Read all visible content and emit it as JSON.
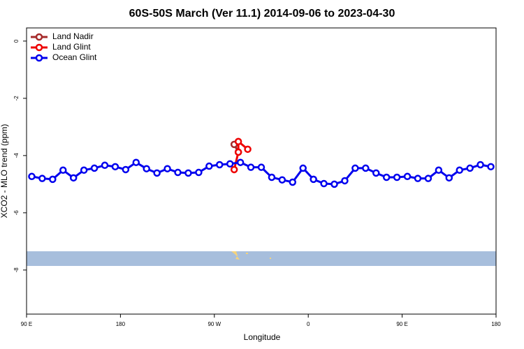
{
  "chart_data": {
    "type": "line",
    "title": "60S-50S March (Ver 11.1)   2014-09-06 to 2023-04-30",
    "x_label": "Longitude",
    "y_label": "XCO2 - MLO trend (ppm)",
    "xlim": [
      90,
      540
    ],
    "xticks": [
      {
        "value": 90,
        "label": "90 E"
      },
      180,
      {
        "value": 270,
        "label": "90 W"
      },
      {
        "value": 360,
        "label": "0"
      },
      {
        "value": 450,
        "label": "90 E"
      },
      {
        "value": 540,
        "label": "180"
      }
    ],
    "ylim": [
      -9.54,
      0.46
    ],
    "yticks": [
      0,
      -2,
      -4,
      -6,
      -8
    ],
    "legend": "top-left",
    "series": [
      {
        "name": "Land Nadir",
        "color": "#a52a2a",
        "x": [
          289,
          293
        ],
        "values": [
          -3.61,
          -3.88
        ]
      },
      {
        "name": "Land Glint",
        "color": "#ee0000",
        "x": [
          289,
          293,
          293,
          302
        ],
        "values": [
          -4.49,
          -3.88,
          -3.51,
          -3.78
        ]
      },
      {
        "name": "Ocean Glint",
        "color": "#0000ee",
        "x": [
          95,
          105,
          115,
          125,
          135,
          145,
          155,
          165,
          175,
          185,
          195,
          205,
          215,
          225,
          235,
          245,
          255,
          265,
          275,
          285,
          295,
          305,
          315,
          325,
          335,
          345,
          355,
          365,
          375,
          385,
          395,
          405,
          415,
          425,
          435,
          445,
          455,
          465,
          475,
          485,
          495,
          505,
          515,
          525,
          535
        ],
        "values": [
          -4.73,
          -4.8,
          -4.83,
          -4.51,
          -4.78,
          -4.51,
          -4.44,
          -4.34,
          -4.39,
          -4.49,
          -4.24,
          -4.46,
          -4.61,
          -4.46,
          -4.59,
          -4.61,
          -4.59,
          -4.37,
          -4.32,
          -4.29,
          -4.24,
          -4.41,
          -4.41,
          -4.76,
          -4.85,
          -4.93,
          -4.44,
          -4.83,
          -4.98,
          -5.0,
          -4.88,
          -4.44,
          -4.44,
          -4.61,
          -4.76,
          -4.76,
          -4.73,
          -4.8,
          -4.8,
          -4.51,
          -4.78,
          -4.51,
          -4.44,
          -4.32,
          -4.39
        ]
      }
    ]
  }
}
